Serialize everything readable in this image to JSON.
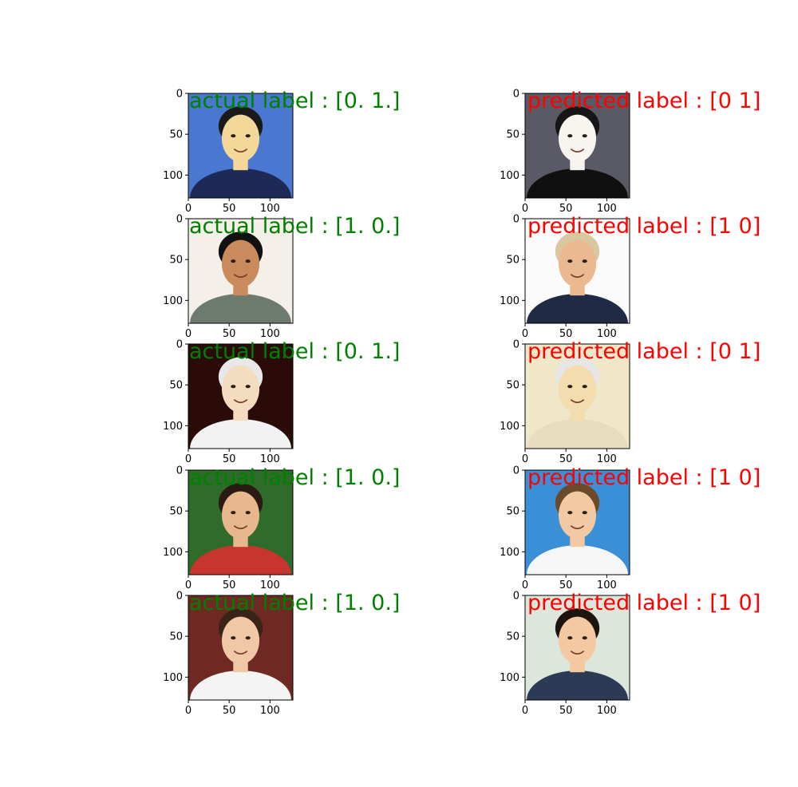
{
  "chart_data": {
    "type": "image_grid",
    "grid": {
      "rows": 5,
      "cols": 2
    },
    "axes": {
      "xlim": [
        0,
        128
      ],
      "ylim": [
        0,
        128
      ],
      "y_inverted": true,
      "xticks": [
        0,
        50,
        100
      ],
      "yticks": [
        0,
        50,
        100
      ],
      "xtick_labels": [
        "0",
        "50",
        "100"
      ],
      "ytick_labels": [
        "0",
        "50",
        "100"
      ]
    },
    "colors": {
      "actual": "#008000",
      "predicted": "#ff0000",
      "axis": "#000000"
    },
    "panels": [
      {
        "kind": "actual",
        "label": "actual label : [0. 1.]",
        "value": [
          0,
          1
        ],
        "image": "face-portrait",
        "tones": {
          "bg": "#4a78d0",
          "skin": "#f3d89a",
          "hair": "#1a1a1a",
          "shirt": "#1c2a55"
        }
      },
      {
        "kind": "predicted",
        "label": "predicted label : [0 1]",
        "value": [
          0,
          1
        ],
        "image": "face-portrait",
        "tones": {
          "bg": "#5a5a66",
          "skin": "#f8f4f0",
          "hair": "#151515",
          "shirt": "#101010"
        }
      },
      {
        "kind": "actual",
        "label": "actual label : [1. 0.]",
        "value": [
          1,
          0
        ],
        "image": "face-portrait",
        "tones": {
          "bg": "#f4efe8",
          "skin": "#c98a5c",
          "hair": "#111111",
          "shirt": "#6d7a70"
        }
      },
      {
        "kind": "predicted",
        "label": "predicted label : [1 0]",
        "value": [
          1,
          0
        ],
        "image": "face-portrait",
        "tones": {
          "bg": "#fafafa",
          "skin": "#eab98f",
          "hair": "#d9c7a0",
          "shirt": "#1f2a44"
        }
      },
      {
        "kind": "actual",
        "label": "actual label : [0. 1.]",
        "value": [
          0,
          1
        ],
        "image": "face-portrait",
        "tones": {
          "bg": "#2a0b08",
          "skin": "#f3dcc0",
          "hair": "#e8e8e8",
          "shirt": "#f2f2f2"
        }
      },
      {
        "kind": "predicted",
        "label": "predicted label : [0 1]",
        "value": [
          0,
          1
        ],
        "image": "face-portrait",
        "tones": {
          "bg": "#f0e6c8",
          "skin": "#f3dcae",
          "hair": "#e6e6e6",
          "shirt": "#e7dcc0"
        }
      },
      {
        "kind": "actual",
        "label": "actual label : [1. 0.]",
        "value": [
          1,
          0
        ],
        "image": "face-portrait",
        "tones": {
          "bg": "#2f6b2a",
          "skin": "#e9b78d",
          "hair": "#2a1a12",
          "shirt": "#c8342e"
        }
      },
      {
        "kind": "predicted",
        "label": "predicted label : [1 0]",
        "value": [
          1,
          0
        ],
        "image": "face-portrait",
        "tones": {
          "bg": "#3a8fd6",
          "skin": "#f2c9a2",
          "hair": "#6b4a2a",
          "shirt": "#f6f6f6"
        }
      },
      {
        "kind": "actual",
        "label": "actual label : [1. 0.]",
        "value": [
          1,
          0
        ],
        "image": "face-portrait",
        "tones": {
          "bg": "#6e2a22",
          "skin": "#f1c8a6",
          "hair": "#3a2418",
          "shirt": "#f4f4f4"
        }
      },
      {
        "kind": "predicted",
        "label": "predicted label : [1 0]",
        "value": [
          1,
          0
        ],
        "image": "face-portrait",
        "tones": {
          "bg": "#dde6da",
          "skin": "#f4c9a2",
          "hair": "#1d140e",
          "shirt": "#2b3a55"
        }
      }
    ]
  }
}
